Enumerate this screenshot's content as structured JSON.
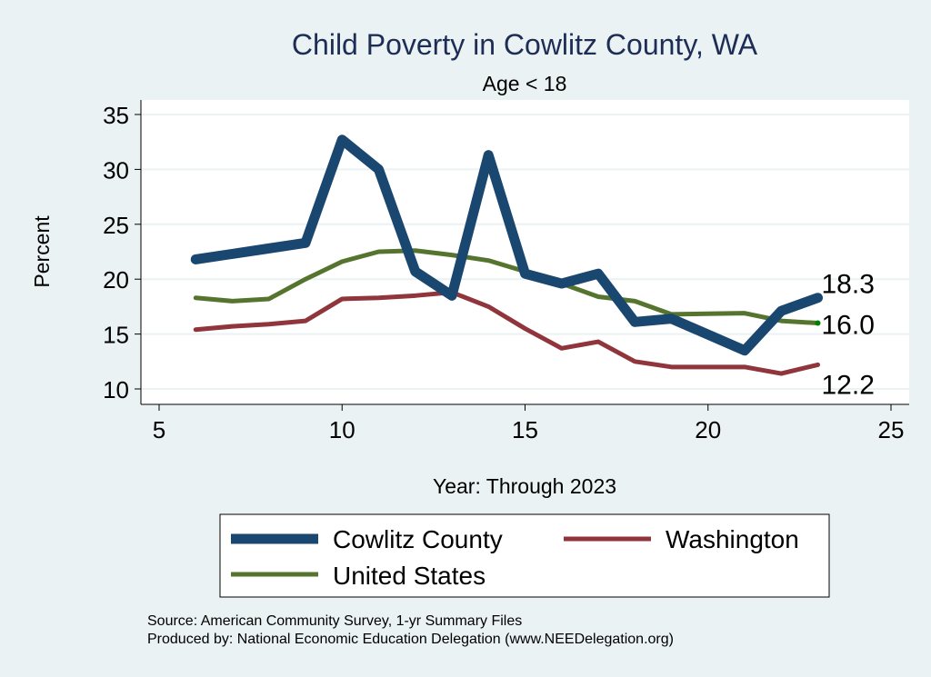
{
  "chart_data": {
    "type": "line",
    "title": "Child Poverty in Cowlitz County, WA",
    "subtitle": "Age < 18",
    "xlabel": "Year: Through 2023",
    "ylabel": "Percent",
    "xlim": [
      5,
      25
    ],
    "ylim": [
      10,
      35
    ],
    "xticks": [
      5,
      10,
      15,
      20,
      25
    ],
    "yticks": [
      10,
      15,
      20,
      25,
      30,
      35
    ],
    "grid": true,
    "legend": "bottom",
    "series": [
      {
        "name": "Cowlitz County",
        "color": "#1a476f",
        "x": [
          6,
          7,
          8,
          9,
          10,
          11,
          12,
          13,
          14,
          15,
          16,
          17,
          18,
          19,
          21,
          22,
          23
        ],
        "y": [
          21.8,
          22.3,
          22.8,
          23.3,
          32.7,
          30.0,
          20.7,
          18.5,
          31.3,
          20.5,
          19.6,
          20.5,
          16.1,
          16.4,
          13.5,
          17.1,
          18.3
        ],
        "end_label": "18.3"
      },
      {
        "name": "Washington",
        "color": "#90353b",
        "x": [
          6,
          7,
          8,
          9,
          10,
          11,
          12,
          13,
          14,
          15,
          16,
          17,
          18,
          19,
          21,
          22,
          23
        ],
        "y": [
          15.4,
          15.7,
          15.9,
          16.2,
          18.2,
          18.3,
          18.5,
          18.8,
          17.5,
          15.5,
          13.7,
          14.3,
          12.5,
          12.0,
          12.0,
          11.4,
          12.2
        ],
        "end_label": "12.2"
      },
      {
        "name": "United States",
        "color": "#55752f",
        "x": [
          6,
          7,
          8,
          9,
          10,
          11,
          12,
          13,
          14,
          15,
          16,
          17,
          18,
          19,
          21,
          22,
          23
        ],
        "y": [
          18.3,
          18.0,
          18.2,
          20.0,
          21.6,
          22.5,
          22.6,
          22.2,
          21.7,
          20.7,
          19.6,
          18.4,
          18.0,
          16.8,
          16.9,
          16.2,
          16.0
        ],
        "end_label": "16.0"
      }
    ],
    "notes": [
      "Source: American Community Survey, 1-yr Summary Files",
      "Produced by: National Economic Education Delegation (www.NEEDelegation.org)"
    ]
  }
}
